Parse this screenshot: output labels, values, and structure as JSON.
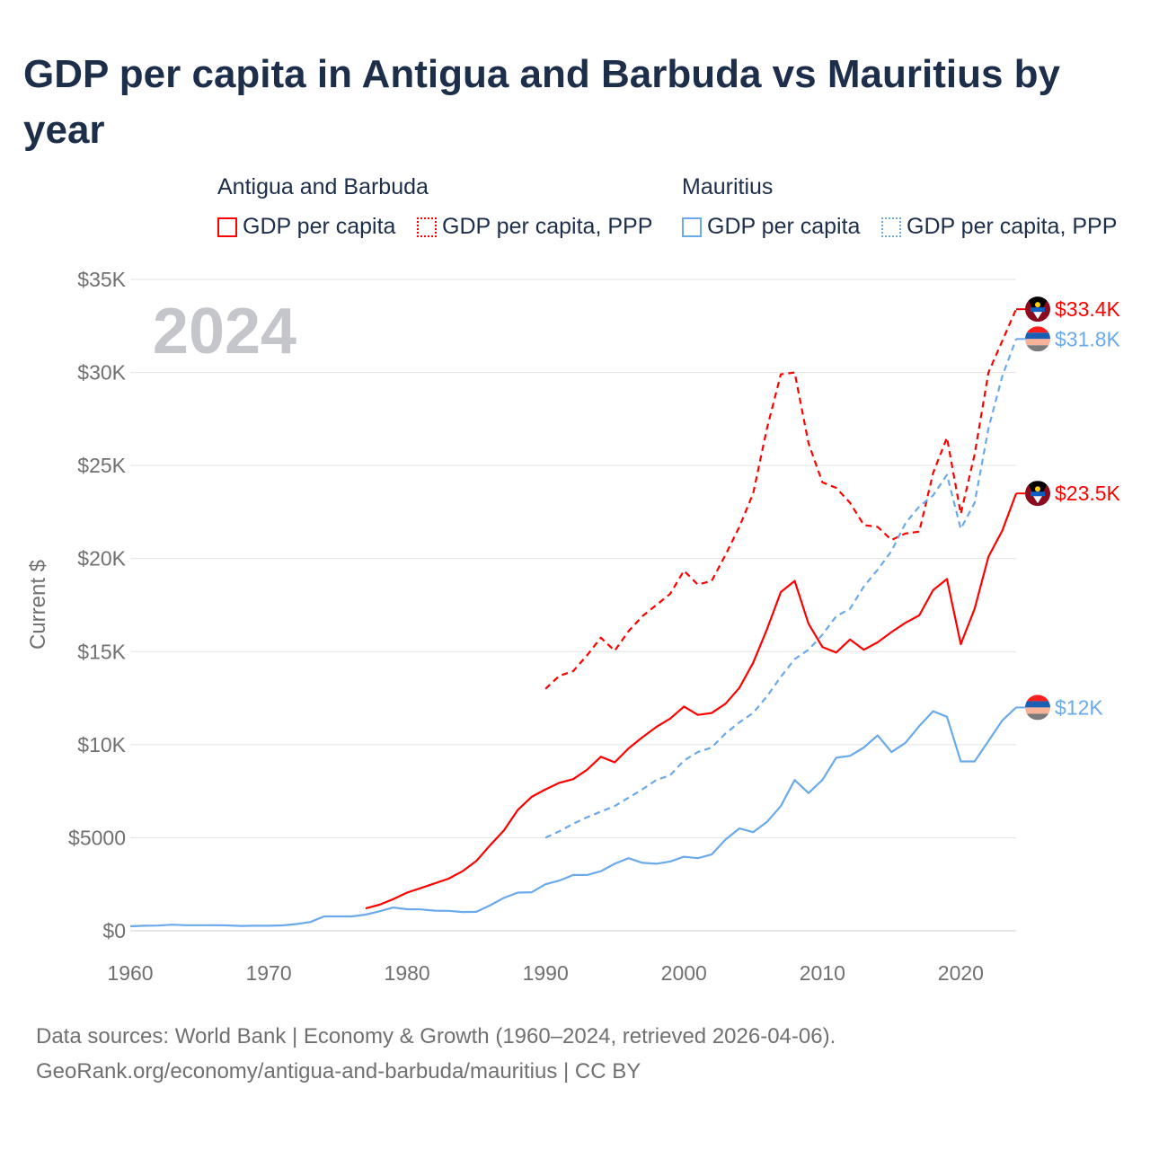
{
  "title": "GDP per capita in Antigua and Barbuda vs Mauritius by year",
  "legend": {
    "groups": [
      {
        "name": "Antigua and Barbuda",
        "items": [
          "GDP per capita",
          "GDP per capita, PPP"
        ]
      },
      {
        "name": "Mauritius",
        "items": [
          "GDP per capita",
          "GDP per capita, PPP"
        ]
      }
    ]
  },
  "footer": {
    "line1": "Data sources: World Bank | Economy & Growth (1960–2024, retrieved 2026-04-06).",
    "line2": "GeoRank.org/economy/antigua-and-barbuda/mauritius | CC BY"
  },
  "chart_data": {
    "type": "line",
    "title": "GDP per capita in Antigua and Barbuda vs Mauritius by year",
    "xlabel": "",
    "ylabel": "Current $",
    "year_watermark": "2024",
    "xlim": [
      1960,
      2024
    ],
    "ylim": [
      0,
      35000
    ],
    "x_ticks": [
      "1960",
      "1970",
      "1980",
      "1990",
      "2000",
      "2010",
      "2020"
    ],
    "x_tick_values": [
      1960,
      1970,
      1980,
      1990,
      2000,
      2010,
      2020
    ],
    "y_ticks": [
      "$0",
      "$5000",
      "$10K",
      "$15K",
      "$20K",
      "$25K",
      "$30K",
      "$35K"
    ],
    "y_tick_values": [
      0,
      5000,
      10000,
      15000,
      20000,
      25000,
      30000,
      35000
    ],
    "grid": true,
    "colors": {
      "antigua": "#ff0000",
      "mauritius": "#6aa9ea"
    },
    "series": [
      {
        "name": "Antigua and Barbuda - GDP per capita, PPP",
        "country": "antigua",
        "dashed": true,
        "start": 1990,
        "end_label": "$33.4K",
        "values": [
          13000,
          13700,
          13950,
          14800,
          15750,
          15050,
          16100,
          16900,
          17500,
          18100,
          19350,
          18600,
          18800,
          20200,
          21700,
          23500,
          27000,
          29900,
          30000,
          26200,
          24100,
          23800,
          23000,
          21800,
          21700,
          21000,
          21350,
          21450,
          24600,
          26500,
          22400,
          25600,
          30000,
          31700,
          33400
        ]
      },
      {
        "name": "Mauritius - GDP per capita, PPP",
        "country": "mauritius",
        "dashed": true,
        "start": 1990,
        "end_label": "$31.8K",
        "values": [
          5000,
          5350,
          5750,
          6100,
          6400,
          6700,
          7150,
          7600,
          8100,
          8350,
          9150,
          9600,
          9850,
          10600,
          11200,
          11700,
          12600,
          13650,
          14600,
          15100,
          15900,
          16900,
          17300,
          18500,
          19400,
          20400,
          21900,
          22800,
          23400,
          24500,
          21600,
          23000,
          27000,
          29800,
          31800
        ]
      },
      {
        "name": "Antigua and Barbuda - GDP per capita",
        "country": "antigua",
        "dashed": false,
        "start": 1977,
        "end_label": "$23.5K",
        "values": [
          1200,
          1400,
          1700,
          2050,
          2300,
          2550,
          2800,
          3200,
          3750,
          4600,
          5400,
          6500,
          7200,
          7600,
          7950,
          8150,
          8650,
          9350,
          9050,
          9800,
          10400,
          10950,
          11400,
          12050,
          11600,
          11700,
          12200,
          13050,
          14400,
          16200,
          18200,
          18800,
          16500,
          15250,
          14950,
          15650,
          15100,
          15500,
          16050,
          16550,
          16950,
          18300,
          18900,
          15400,
          17300,
          20100,
          21500,
          23500
        ]
      },
      {
        "name": "Mauritius - GDP per capita",
        "country": "mauritius",
        "dashed": false,
        "start": 1960,
        "end_label": "$12K",
        "values": [
          240,
          270,
          280,
          330,
          300,
          300,
          300,
          290,
          260,
          270,
          270,
          290,
          360,
          470,
          770,
          770,
          770,
          870,
          1050,
          1250,
          1160,
          1150,
          1080,
          1070,
          1010,
          1020,
          1370,
          1770,
          2050,
          2070,
          2500,
          2700,
          3000,
          3000,
          3200,
          3600,
          3900,
          3650,
          3600,
          3720,
          3980,
          3900,
          4100,
          4900,
          5500,
          5300,
          5850,
          6700,
          8100,
          7400,
          8100,
          9300,
          9400,
          9850,
          10500,
          9600,
          10100,
          11000,
          11800,
          11500,
          9100,
          9100,
          10200,
          11300,
          12000
        ]
      }
    ]
  }
}
